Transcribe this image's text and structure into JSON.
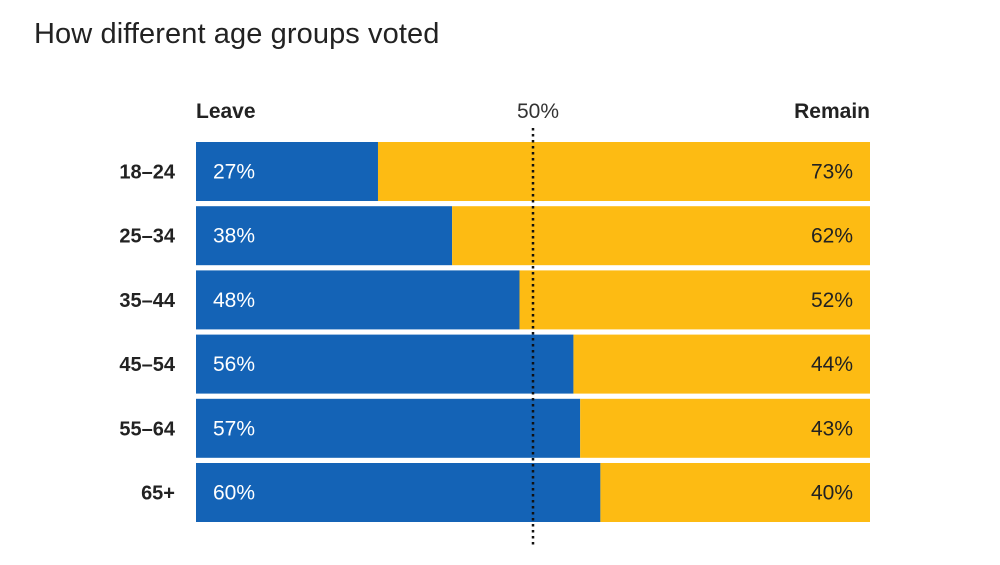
{
  "chart_data": {
    "type": "bar",
    "orientation": "horizontal-stacked-100",
    "title": "How different age groups voted",
    "categories": [
      "18–24",
      "25–34",
      "35–44",
      "45–54",
      "55–64",
      "65+"
    ],
    "series": [
      {
        "name": "Leave",
        "values": [
          27,
          38,
          48,
          56,
          57,
          60
        ],
        "labels": [
          "27%",
          "38%",
          "48%",
          "56%",
          "57%",
          "60%"
        ]
      },
      {
        "name": "Remain",
        "values": [
          73,
          62,
          52,
          44,
          43,
          40
        ],
        "labels": [
          "73%",
          "62%",
          "52%",
          "44%",
          "43%",
          "40%"
        ]
      }
    ],
    "reference_line": {
      "value": 50,
      "label": "50%",
      "style": "dotted"
    },
    "xlim": [
      0,
      100
    ],
    "colors": {
      "Leave": "#1463B6",
      "Remain": "#FDBB13",
      "reference": "#111111"
    },
    "legend_placement": "top"
  }
}
